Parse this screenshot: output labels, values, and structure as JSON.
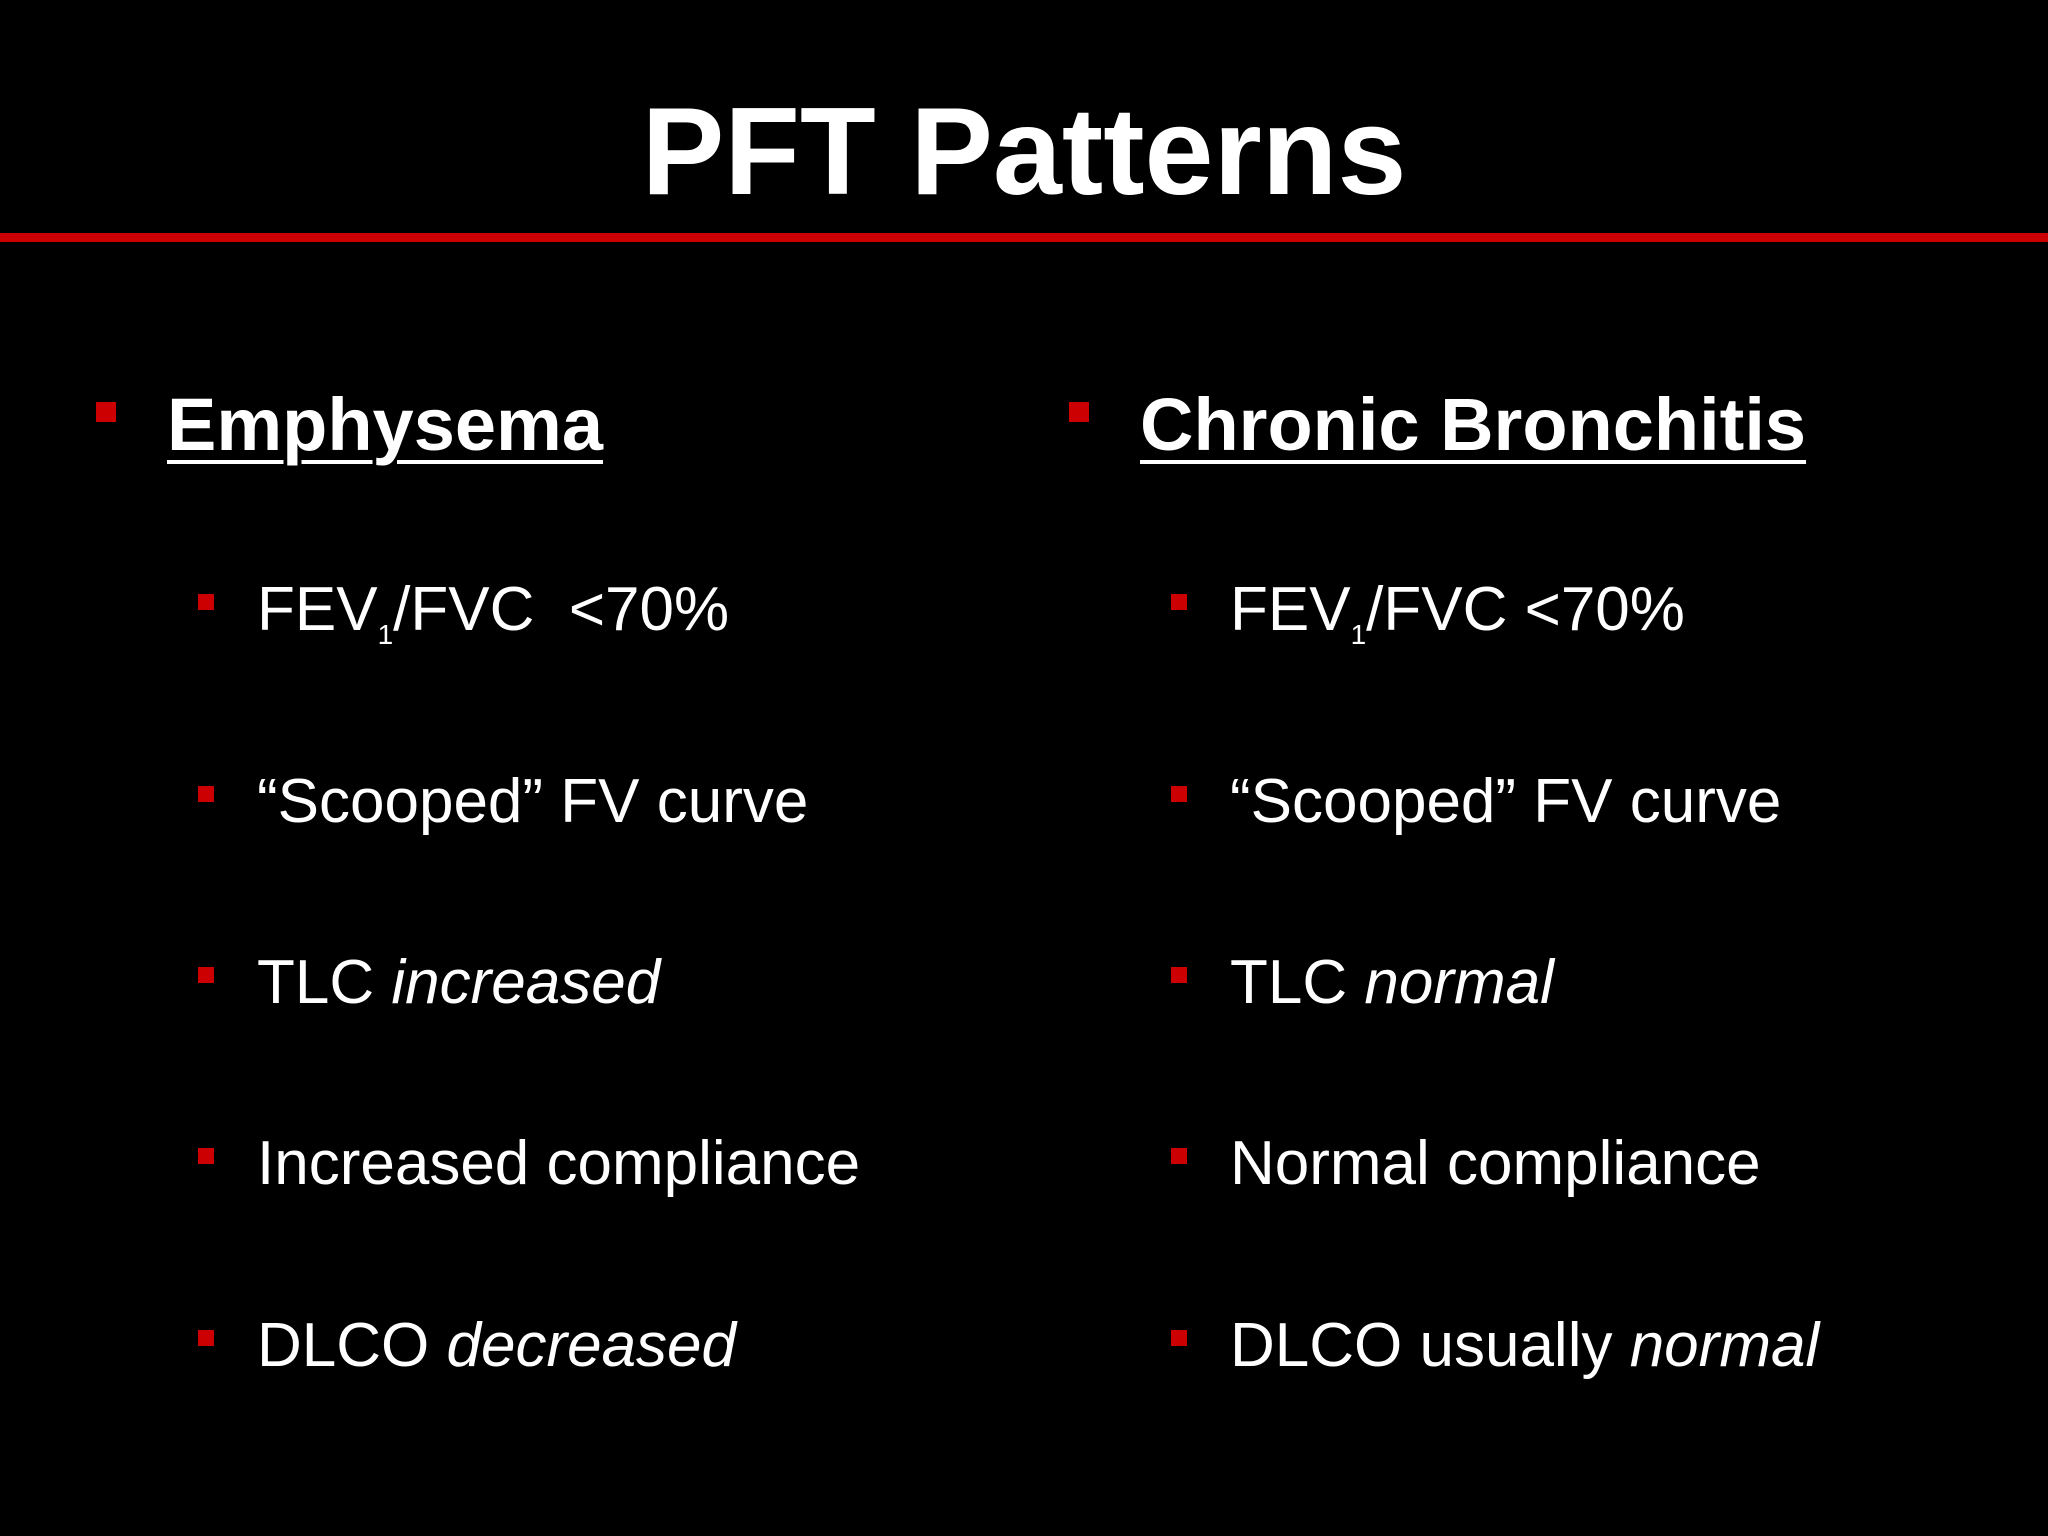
{
  "title": "PFT Patterns",
  "colors": {
    "background": "#000000",
    "text": "#ffffff",
    "accent": "#cc0000"
  },
  "left": {
    "heading": "Emphysema",
    "items": [
      {
        "main": "FEV",
        "sub": "1",
        "rest": "/FVC  <70%"
      },
      {
        "text": "“Scooped” FV curve"
      },
      {
        "plain": "TLC ",
        "italic": "increased"
      },
      {
        "text": "Increased compliance"
      },
      {
        "plain": "DLCO ",
        "italic": "decreased"
      }
    ]
  },
  "right": {
    "heading": "Chronic Bronchitis",
    "items": [
      {
        "main": "FEV",
        "sub": "1",
        "rest": "/FVC <70%"
      },
      {
        "text": "“Scooped” FV curve"
      },
      {
        "plain": "TLC ",
        "italic": "normal"
      },
      {
        "text": "Normal compliance"
      },
      {
        "plain": "DLCO usually ",
        "italic": "normal"
      }
    ]
  }
}
